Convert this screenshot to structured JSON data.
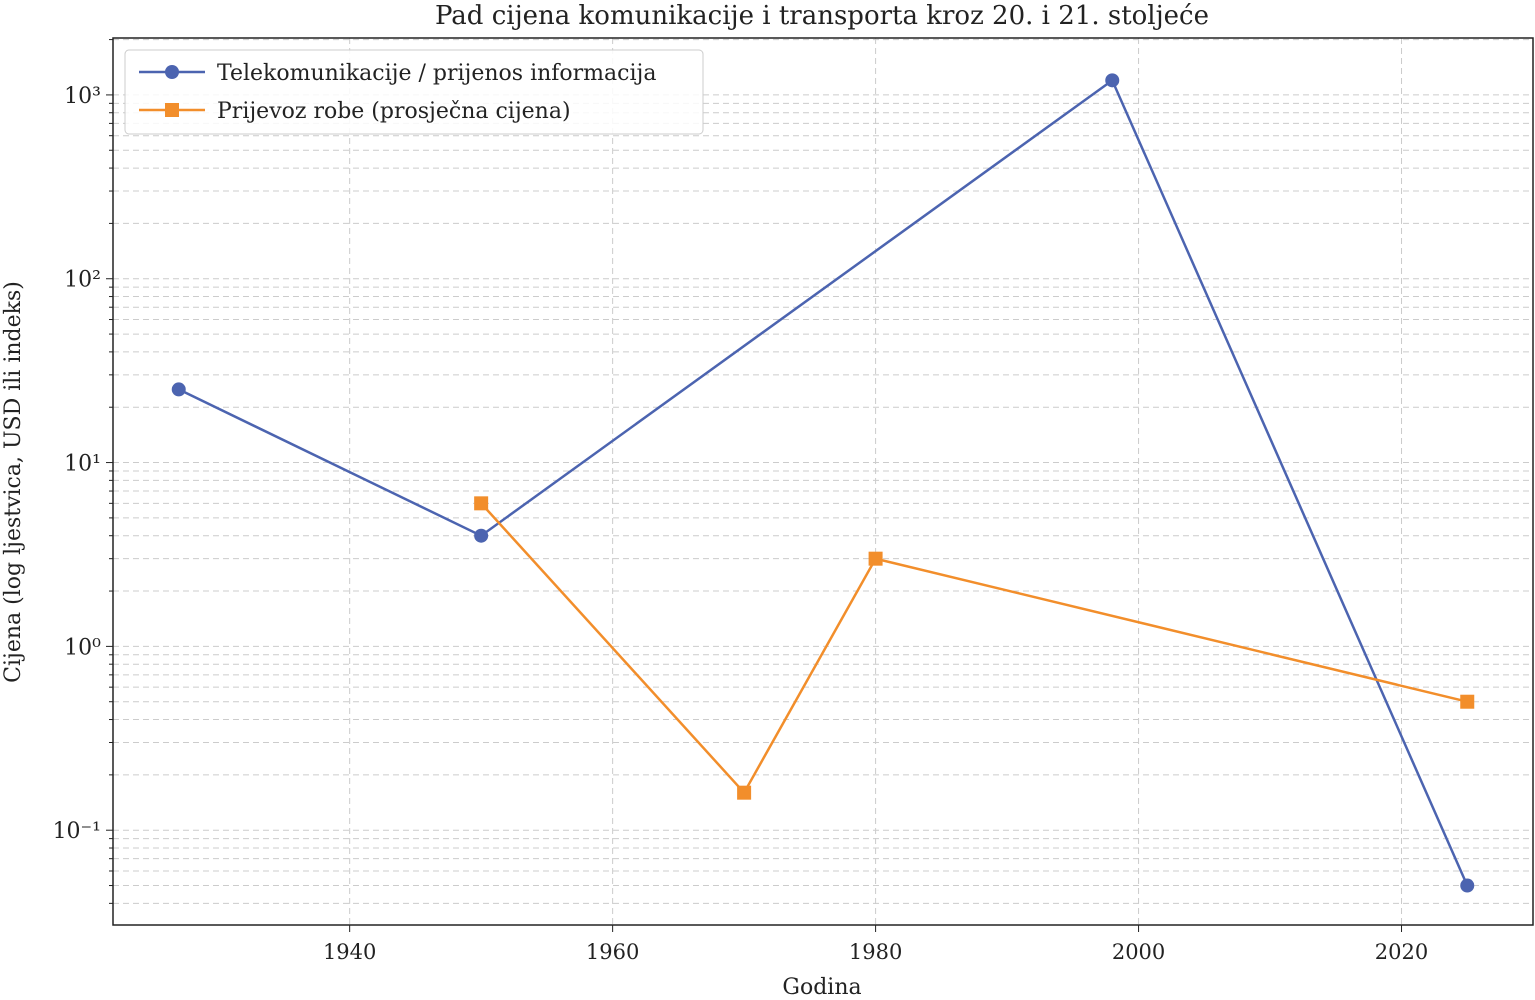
{
  "chart_data": {
    "type": "line",
    "title": "Pad cijena komunikacije i transporta kroz 20. i 21. stoljeće",
    "xlabel": "Godina",
    "ylabel": "Cijena (log ljestvica, USD ili indeks)",
    "series": [
      {
        "name": "Telekomunikacije / prijenos informacija",
        "color": "#4c64b0",
        "marker": "circle",
        "x": [
          1927,
          1950,
          1998,
          2025
        ],
        "values": [
          25,
          4,
          1200,
          0.05
        ]
      },
      {
        "name": "Prijevoz robe (prosječna cijena)",
        "color": "#f28e2b",
        "marker": "square",
        "x": [
          1950,
          1970,
          1980,
          2025
        ],
        "values": [
          6,
          0.16,
          3,
          0.5
        ]
      }
    ],
    "xlim": [
      1922,
      2030
    ],
    "xticks": [
      1940,
      1960,
      1980,
      2000,
      2020
    ],
    "ylim": [
      0.0305,
      2040
    ],
    "ylog": true,
    "yticks": [
      {
        "value": 0.1,
        "label": "10⁻¹"
      },
      {
        "value": 1,
        "label": "10⁰"
      },
      {
        "value": 10,
        "label": "10¹"
      },
      {
        "value": 100,
        "label": "10²"
      },
      {
        "value": 1000,
        "label": "10³"
      }
    ],
    "grid": true,
    "minor_grid": true,
    "legend": "upper left"
  }
}
